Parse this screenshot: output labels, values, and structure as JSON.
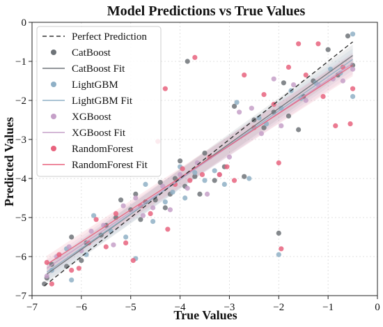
{
  "chart_data": {
    "type": "scatter",
    "title": "Model Predictions vs True Values",
    "xlabel": "True Values",
    "ylabel": "Predicted Values",
    "xlim": [
      -7,
      0
    ],
    "ylim": [
      -7,
      0
    ],
    "xticks": [
      -7,
      -6,
      -5,
      -4,
      -3,
      -2,
      -1,
      0
    ],
    "yticks": [
      -7,
      -6,
      -5,
      -4,
      -3,
      -2,
      -1,
      0
    ],
    "xtick_labels": [
      "−7",
      "−6",
      "−5",
      "−4",
      "−3",
      "−2",
      "−1",
      "0"
    ],
    "ytick_labels": [
      "−7",
      "−6",
      "−5",
      "−4",
      "−3",
      "−2",
      "−1",
      "0"
    ],
    "grid": true,
    "legend_position": "top-left",
    "reference_line": {
      "label": "Perfect Prediction",
      "x": [
        -6.75,
        -0.5
      ],
      "y": [
        -6.75,
        -0.5
      ],
      "color": "#333333"
    },
    "series": [
      {
        "name": "CatBoost",
        "fit_label": "CatBoost Fit",
        "color": "#6e7378",
        "fit": [
          [
            -6.7,
            -6.45
          ],
          [
            -0.5,
            -0.85
          ]
        ],
        "points": [
          [
            -6.75,
            -6.7
          ],
          [
            -6.7,
            -6.55
          ],
          [
            -6.6,
            -6.2
          ],
          [
            -6.3,
            -6.25
          ],
          [
            -6.2,
            -5.5
          ],
          [
            -6.0,
            -6.1
          ],
          [
            -5.9,
            -5.65
          ],
          [
            -5.6,
            -5.45
          ],
          [
            -5.5,
            -5.2
          ],
          [
            -5.3,
            -5.0
          ],
          [
            -5.2,
            -4.55
          ],
          [
            -5.0,
            -4.8
          ],
          [
            -4.9,
            -4.4
          ],
          [
            -4.8,
            -5.05
          ],
          [
            -4.7,
            -4.6
          ],
          [
            -4.5,
            -4.55
          ],
          [
            -4.4,
            -4.1
          ],
          [
            -4.3,
            -4.75
          ],
          [
            -4.2,
            -4.4
          ],
          [
            -4.1,
            -4.0
          ],
          [
            -4.0,
            -3.55
          ],
          [
            -3.9,
            -4.2
          ],
          [
            -3.85,
            -1.0
          ],
          [
            -3.7,
            -3.95
          ],
          [
            -3.6,
            -4.4
          ],
          [
            -3.5,
            -3.35
          ],
          [
            -3.3,
            -4.05
          ],
          [
            -3.1,
            -3.7
          ],
          [
            -2.9,
            -2.15
          ],
          [
            -2.7,
            -3.95
          ],
          [
            -2.5,
            -2.5
          ],
          [
            -2.3,
            -2.7
          ],
          [
            -2.1,
            -2.3
          ],
          [
            -2.0,
            -5.4
          ],
          [
            -1.9,
            -1.55
          ],
          [
            -1.8,
            -2.4
          ],
          [
            -1.6,
            -2.75
          ],
          [
            -1.5,
            -1.9
          ],
          [
            -1.3,
            -1.5
          ],
          [
            -1.0,
            -0.7
          ],
          [
            -0.8,
            -1.35
          ],
          [
            -0.6,
            -0.35
          ],
          [
            -0.5,
            -1.1
          ]
        ]
      },
      {
        "name": "LightGBM",
        "fit_label": "LightGBM Fit",
        "color": "#8fb0c6",
        "fit": [
          [
            -6.7,
            -6.4
          ],
          [
            -0.5,
            -0.95
          ]
        ],
        "points": [
          [
            -6.6,
            -6.35
          ],
          [
            -6.3,
            -5.8
          ],
          [
            -6.2,
            -6.6
          ],
          [
            -5.9,
            -5.95
          ],
          [
            -5.75,
            -4.95
          ],
          [
            -5.4,
            -5.35
          ],
          [
            -5.1,
            -5.5
          ],
          [
            -4.9,
            -6.05
          ],
          [
            -4.7,
            -4.15
          ],
          [
            -4.55,
            -5.1
          ],
          [
            -4.3,
            -4.6
          ],
          [
            -4.15,
            -4.35
          ],
          [
            -4.0,
            -3.7
          ],
          [
            -3.9,
            -4.5
          ],
          [
            -3.7,
            -3.85
          ],
          [
            -3.5,
            -4.05
          ],
          [
            -3.3,
            -3.8
          ],
          [
            -3.1,
            -4.15
          ],
          [
            -2.85,
            -2.05
          ],
          [
            -2.6,
            -4.0
          ],
          [
            -2.4,
            -2.45
          ],
          [
            -2.25,
            -2.6
          ],
          [
            -2.0,
            -5.95
          ],
          [
            -1.95,
            -2.2
          ],
          [
            -1.75,
            -1.75
          ],
          [
            -1.55,
            -1.95
          ],
          [
            -1.25,
            -1.55
          ],
          [
            -0.95,
            -1.2
          ],
          [
            -0.75,
            -1.3
          ],
          [
            -0.5,
            -0.3
          ],
          [
            -0.5,
            -1.9
          ]
        ]
      },
      {
        "name": "XGBoost",
        "fit_label": "XGBoost Fit",
        "color": "#c5a0c8",
        "fit": [
          [
            -6.7,
            -6.3
          ],
          [
            -0.5,
            -1.05
          ]
        ],
        "points": [
          [
            -6.7,
            -6.5
          ],
          [
            -6.5,
            -6.0
          ],
          [
            -6.25,
            -5.75
          ],
          [
            -6.0,
            -5.85
          ],
          [
            -5.8,
            -5.35
          ],
          [
            -5.55,
            -5.2
          ],
          [
            -5.35,
            -5.7
          ],
          [
            -5.15,
            -4.7
          ],
          [
            -4.9,
            -4.5
          ],
          [
            -4.75,
            -4.95
          ],
          [
            -4.55,
            -4.75
          ],
          [
            -4.35,
            -4.2
          ],
          [
            -4.2,
            -4.8
          ],
          [
            -4.0,
            -3.9
          ],
          [
            -3.85,
            -4.25
          ],
          [
            -3.65,
            -3.6
          ],
          [
            -3.45,
            -4.4
          ],
          [
            -3.2,
            -3.9
          ],
          [
            -3.0,
            -3.45
          ],
          [
            -2.8,
            -2.3
          ],
          [
            -2.55,
            -2.2
          ],
          [
            -2.35,
            -2.85
          ],
          [
            -2.1,
            -1.45
          ],
          [
            -1.95,
            -2.65
          ],
          [
            -1.7,
            -1.6
          ],
          [
            -1.45,
            -2.0
          ],
          [
            -1.2,
            -1.6
          ],
          [
            -0.9,
            -1.45
          ],
          [
            -0.7,
            -1.5
          ],
          [
            -0.5,
            -1.2
          ]
        ]
      },
      {
        "name": "RandomForest",
        "fit_label": "RandomForest Fit",
        "color": "#e8637e",
        "fit": [
          [
            -6.7,
            -6.2
          ],
          [
            -0.5,
            -1.1
          ]
        ],
        "points": [
          [
            -6.7,
            -6.15
          ],
          [
            -6.6,
            -6.7
          ],
          [
            -6.45,
            -5.95
          ],
          [
            -6.2,
            -6.35
          ],
          [
            -6.05,
            -6.3
          ],
          [
            -5.85,
            -5.65
          ],
          [
            -5.7,
            -5.05
          ],
          [
            -5.5,
            -5.75
          ],
          [
            -5.3,
            -4.9
          ],
          [
            -5.1,
            -5.65
          ],
          [
            -4.95,
            -6.1
          ],
          [
            -4.8,
            -4.7
          ],
          [
            -4.6,
            -4.9
          ],
          [
            -4.45,
            -3.05
          ],
          [
            -4.3,
            -1.7
          ],
          [
            -4.25,
            -5.3
          ],
          [
            -4.1,
            -4.15
          ],
          [
            -3.95,
            -3.75
          ],
          [
            -3.8,
            -4.05
          ],
          [
            -3.7,
            -0.9
          ],
          [
            -3.55,
            -3.9
          ],
          [
            -3.4,
            -3.45
          ],
          [
            -3.2,
            -3.9
          ],
          [
            -3.05,
            -3.7
          ],
          [
            -2.9,
            -4.05
          ],
          [
            -2.7,
            -1.35
          ],
          [
            -2.5,
            -2.7
          ],
          [
            -2.3,
            -1.85
          ],
          [
            -2.1,
            -2.1
          ],
          [
            -2.0,
            -3.6
          ],
          [
            -1.95,
            -5.8
          ],
          [
            -1.8,
            -1.15
          ],
          [
            -1.6,
            -0.55
          ],
          [
            -1.45,
            -1.35
          ],
          [
            -1.2,
            -0.55
          ],
          [
            -1.1,
            -1.9
          ],
          [
            -0.85,
            -2.65
          ],
          [
            -0.7,
            -1.15
          ],
          [
            -0.55,
            -2.6
          ],
          [
            -0.5,
            -1.7
          ]
        ]
      }
    ]
  }
}
